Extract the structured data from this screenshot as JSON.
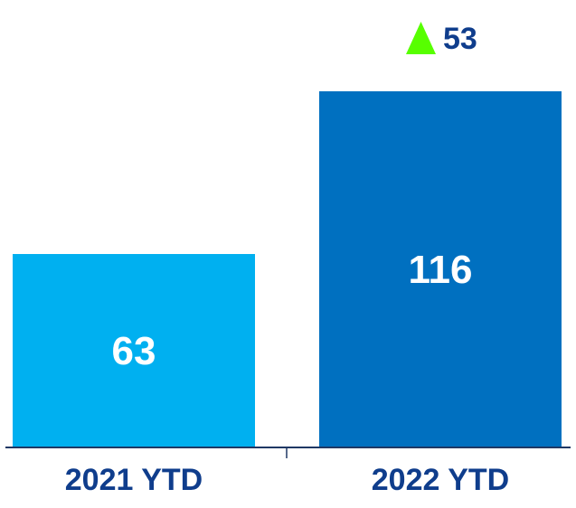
{
  "chart_data": {
    "type": "bar",
    "categories": [
      "2021 YTD",
      "2022 YTD"
    ],
    "values": [
      63,
      116
    ],
    "ylim": [
      0,
      116
    ],
    "grid": false,
    "legend": "none",
    "change": {
      "value": "53",
      "direction": "up",
      "icon": "triangle-up-icon",
      "color": "#57ff00"
    },
    "colors": {
      "bars": [
        "#00b0f0",
        "#0070c0"
      ],
      "value_labels": "#ffffff",
      "category_labels": "#0f3d8c",
      "change_label": "#0f3d8c",
      "axis": "#1f3864"
    }
  }
}
